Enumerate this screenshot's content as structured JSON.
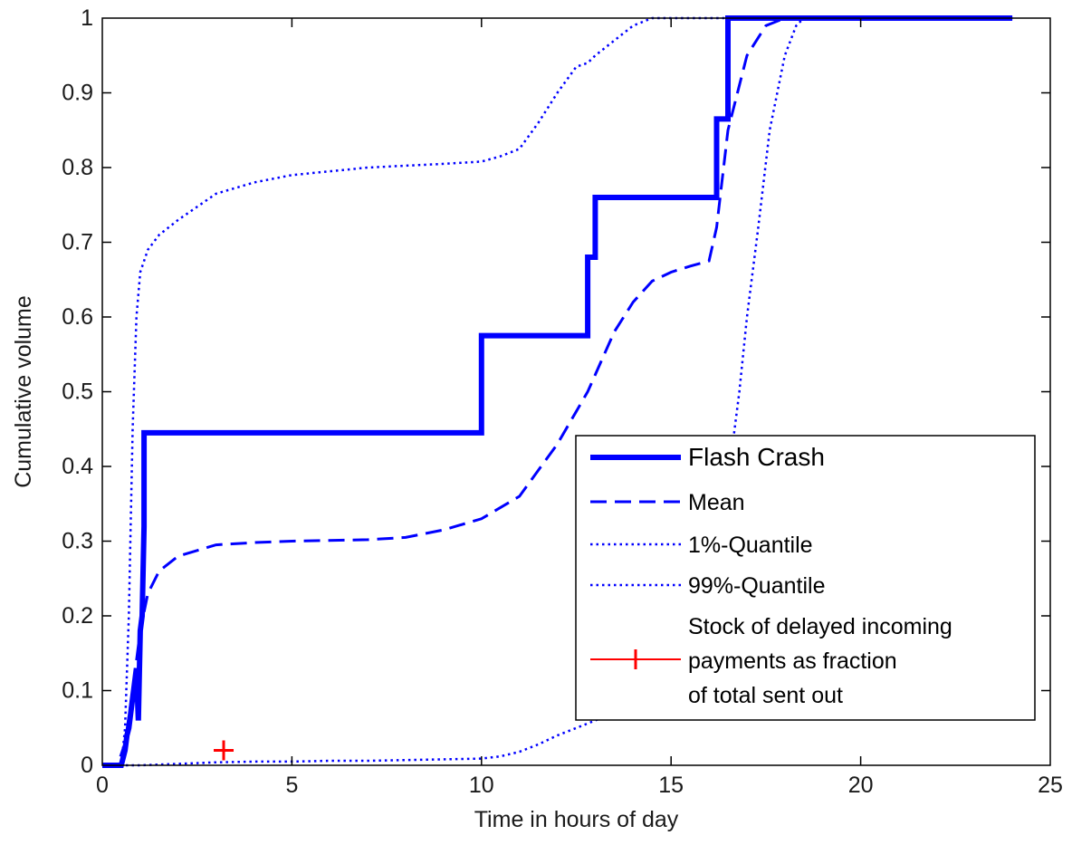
{
  "chart_data": {
    "type": "line",
    "xlabel": "Time in hours of day",
    "ylabel": "Cumulative volume",
    "xlim": [
      0,
      25
    ],
    "ylim": [
      0,
      1
    ],
    "xticks": [
      "0",
      "5",
      "10",
      "15",
      "20",
      "25"
    ],
    "yticks": [
      "0",
      "0.1",
      "0.2",
      "0.3",
      "0.4",
      "0.5",
      "0.6",
      "0.7",
      "0.8",
      "0.9",
      "1"
    ],
    "grid": false,
    "legend_position": "bottom-right",
    "series": [
      {
        "name": "Flash Crash",
        "style": "solid-thick",
        "color": "#0000ff",
        "x": [
          0,
          0.5,
          0.6,
          0.65,
          0.7,
          0.75,
          0.8,
          0.85,
          0.9,
          0.95,
          1.0,
          1.05,
          1.1,
          1.1,
          10.0,
          10.0,
          12.8,
          12.8,
          13.0,
          13.0,
          16.2,
          16.2,
          16.5,
          16.5,
          24
        ],
        "y": [
          0,
          0,
          0.02,
          0.04,
          0.05,
          0.07,
          0.09,
          0.11,
          0.13,
          0.06,
          0.18,
          0.2,
          0.32,
          0.445,
          0.445,
          0.575,
          0.575,
          0.68,
          0.68,
          0.76,
          0.76,
          0.865,
          0.865,
          1.0,
          1.0
        ]
      },
      {
        "name": "Mean",
        "style": "dashed",
        "color": "#0000ff",
        "x": [
          0,
          0.4,
          0.6,
          0.8,
          1.0,
          1.2,
          1.5,
          2,
          3,
          4,
          5,
          7,
          8,
          9,
          10,
          11,
          12,
          12.8,
          13.5,
          14,
          14.5,
          15,
          15.5,
          16,
          16.2,
          16.5,
          17,
          17.5,
          18,
          19,
          20,
          24
        ],
        "y": [
          0,
          0,
          0.03,
          0.1,
          0.18,
          0.23,
          0.26,
          0.28,
          0.295,
          0.298,
          0.3,
          0.302,
          0.305,
          0.315,
          0.33,
          0.36,
          0.43,
          0.5,
          0.58,
          0.62,
          0.648,
          0.66,
          0.668,
          0.675,
          0.72,
          0.85,
          0.95,
          0.99,
          1.0,
          1.0,
          1.0,
          1.0
        ]
      },
      {
        "name": "1%-Quantile",
        "style": "dotted",
        "color": "#0000ff",
        "x": [
          0,
          0.5,
          0.6,
          0.7,
          0.8,
          0.9,
          1.0,
          1.2,
          1.5,
          2,
          3,
          4,
          5,
          7,
          9,
          10,
          10.5,
          11,
          11.5,
          12,
          12.5,
          12.8,
          13,
          13.5,
          14,
          14.5,
          15,
          15.5,
          16,
          16.5,
          17,
          24
        ],
        "y": [
          0,
          0,
          0.05,
          0.2,
          0.45,
          0.6,
          0.66,
          0.69,
          0.71,
          0.73,
          0.765,
          0.78,
          0.79,
          0.8,
          0.805,
          0.808,
          0.815,
          0.825,
          0.86,
          0.9,
          0.935,
          0.94,
          0.95,
          0.97,
          0.99,
          1.0,
          1.0,
          1.0,
          1.0,
          1.0,
          1.0,
          1.0
        ]
      },
      {
        "name": "99%-Quantile",
        "style": "dotted",
        "color": "#0000ff",
        "x": [
          0,
          1,
          2,
          3,
          4,
          5,
          6,
          7,
          8,
          9,
          10,
          10.5,
          11,
          11.5,
          12,
          12.5,
          13,
          13.5,
          14,
          15,
          16,
          16.2,
          16.5,
          16.8,
          17,
          17.3,
          17.6,
          18,
          18.3,
          18.5,
          19,
          20,
          24
        ],
        "y": [
          0,
          0,
          0.002,
          0.004,
          0.005,
          0.005,
          0.006,
          0.006,
          0.007,
          0.008,
          0.009,
          0.012,
          0.018,
          0.028,
          0.04,
          0.05,
          0.06,
          0.07,
          0.09,
          0.13,
          0.2,
          0.25,
          0.38,
          0.5,
          0.6,
          0.72,
          0.85,
          0.95,
          0.99,
          1.0,
          1.0,
          1.0,
          1.0
        ]
      },
      {
        "name": "Stock of delayed incoming payments as fraction of total sent out",
        "style": "marker-plus",
        "color": "#ff0000",
        "x": [
          3.2
        ],
        "y": [
          0.02
        ]
      }
    ],
    "legend": [
      "Flash Crash",
      "Mean",
      "1%-Quantile",
      "99%-Quantile",
      [
        "Stock of delayed incoming",
        "payments as fraction",
        "of total sent out"
      ]
    ]
  }
}
